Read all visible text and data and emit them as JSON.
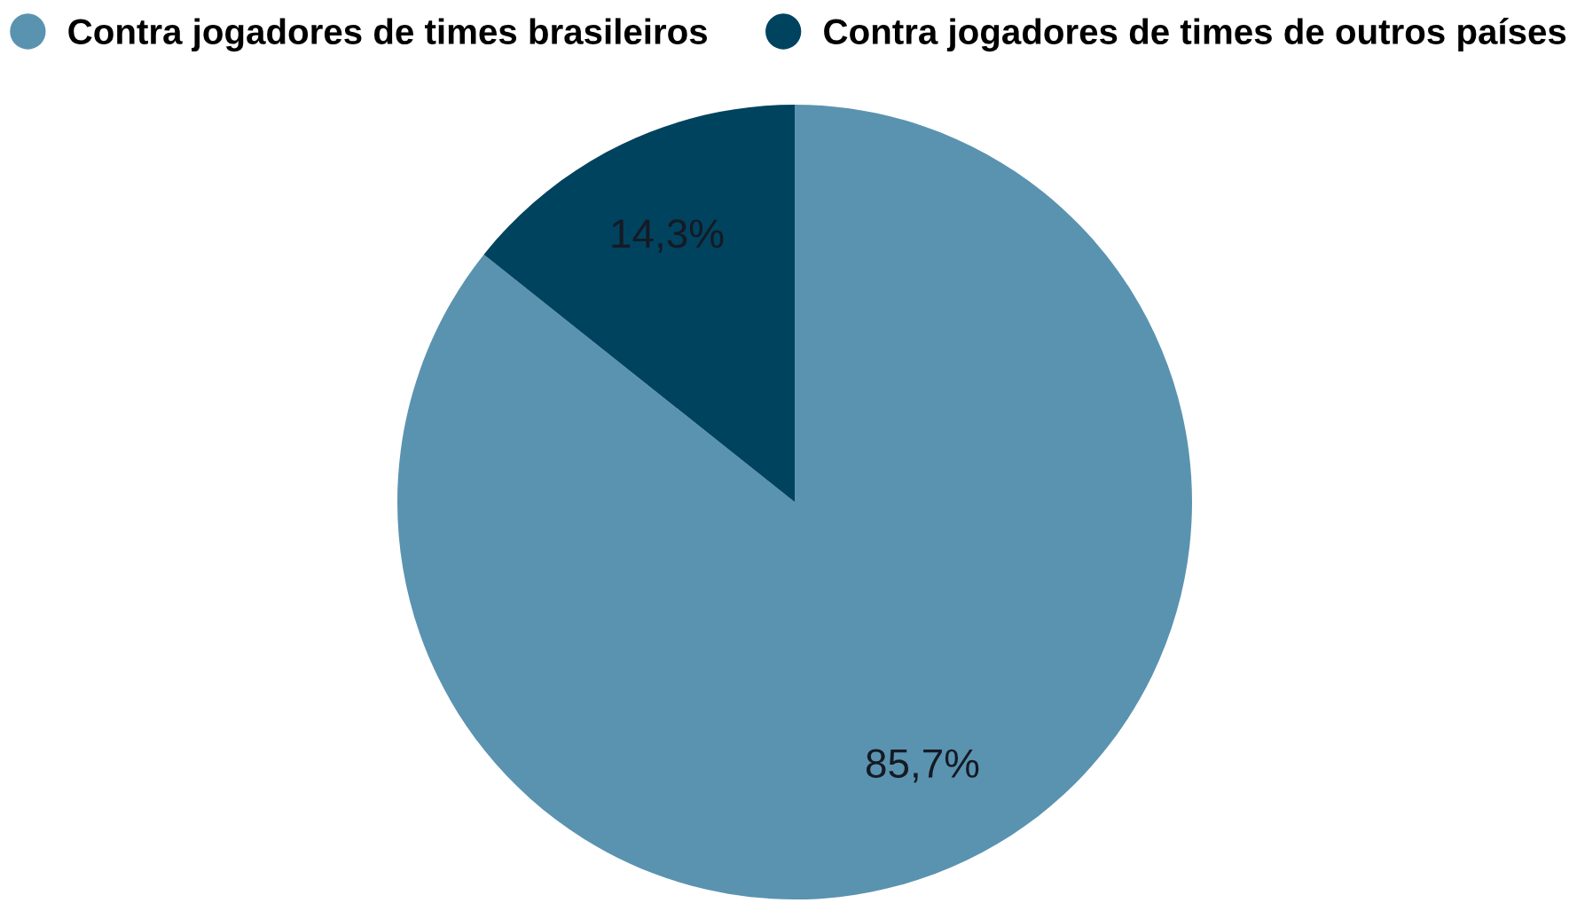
{
  "chart_data": {
    "type": "pie",
    "categories": [
      "Contra jogadores de times brasileiros",
      "Contra jogadores de times de outros países"
    ],
    "values": [
      85.7,
      14.3
    ],
    "colors": [
      "#5a93b0",
      "#00435f"
    ],
    "value_labels": [
      "85,7%",
      "14,3%"
    ],
    "legend": "top"
  }
}
